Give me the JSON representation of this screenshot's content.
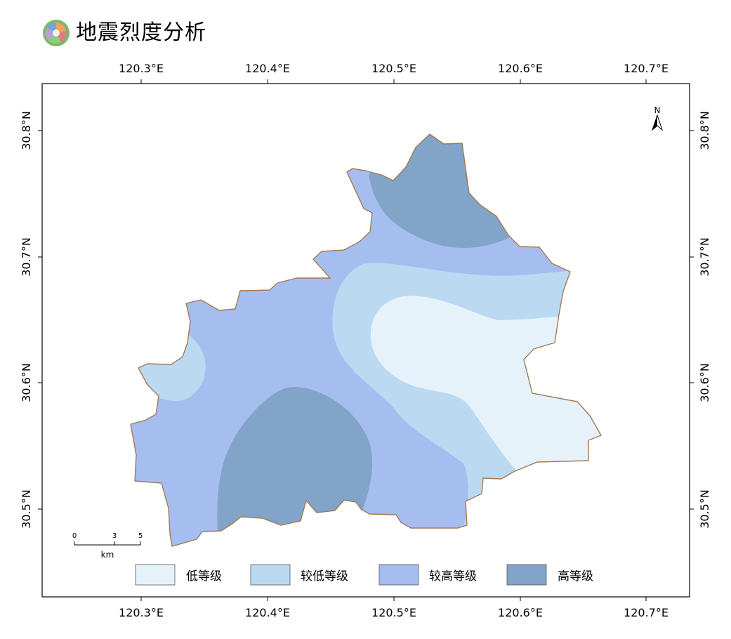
{
  "title": "地震烈度分析",
  "axes": {
    "lon_ticks": [
      "120.3°E",
      "120.4°E",
      "120.5°E",
      "120.6°E",
      "120.7°E"
    ],
    "lat_ticks": [
      "30.8°N",
      "30.7°N",
      "30.6°N",
      "30.5°N"
    ]
  },
  "north_arrow": {
    "label": "N"
  },
  "scale_bar": {
    "labels": [
      "0",
      "3",
      "5"
    ],
    "unit": "km"
  },
  "legend": [
    {
      "label": "低等级",
      "color": "#e6f2fa"
    },
    {
      "label": "较低等级",
      "color": "#bcd9f2"
    },
    {
      "label": "较高等级",
      "color": "#a6bdf0"
    },
    {
      "label": "高等级",
      "color": "#81a4c8"
    }
  ],
  "colors": {
    "boundary": "#a27a55",
    "frame": "#000000"
  }
}
